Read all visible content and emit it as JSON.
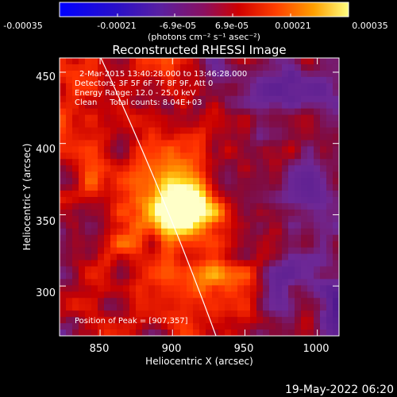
{
  "colorbar": {
    "tick_labels": [
      "-0.00035",
      "-0.00021",
      "-6.9e-05",
      "6.9e-05",
      "0.00021",
      "0.00035"
    ],
    "units_label": "(photons cm⁻² s⁻¹ asec⁻²)",
    "range": [
      -0.00035,
      0.00035
    ]
  },
  "image": {
    "title": "Reconstructed RHESSI Image",
    "info_lines": [
      "2-Mar-2015 13:40:28.000 to 13:46:28.000",
      "Detectors: 3F 5F 6F 7F 8F 9F, Att 0",
      "Energy Range: 12.0 - 25.0 keV",
      "Clean     Total counts: 8.04E+03"
    ],
    "peak_label": "Position of Peak = [907,357]",
    "xlabel": "Heliocentric X (arcsec)",
    "ylabel": "Heliocentric Y (arcsec)",
    "x_ticks": [
      "850",
      "900",
      "950",
      "1000"
    ],
    "y_ticks": [
      "300",
      "350",
      "400",
      "450"
    ],
    "x_range": [
      822,
      1015
    ],
    "y_range": [
      265,
      460
    ],
    "peak": [
      907,
      357
    ]
  },
  "footer": {
    "timestamp": "19-May-2022 06:20"
  },
  "colors": {
    "background": "#000000",
    "colormap": [
      "#0000ff",
      "#4a20a8",
      "#7030a0",
      "#c00000",
      "#ff3000",
      "#ff8000",
      "#ffd000",
      "#ffffff"
    ]
  }
}
